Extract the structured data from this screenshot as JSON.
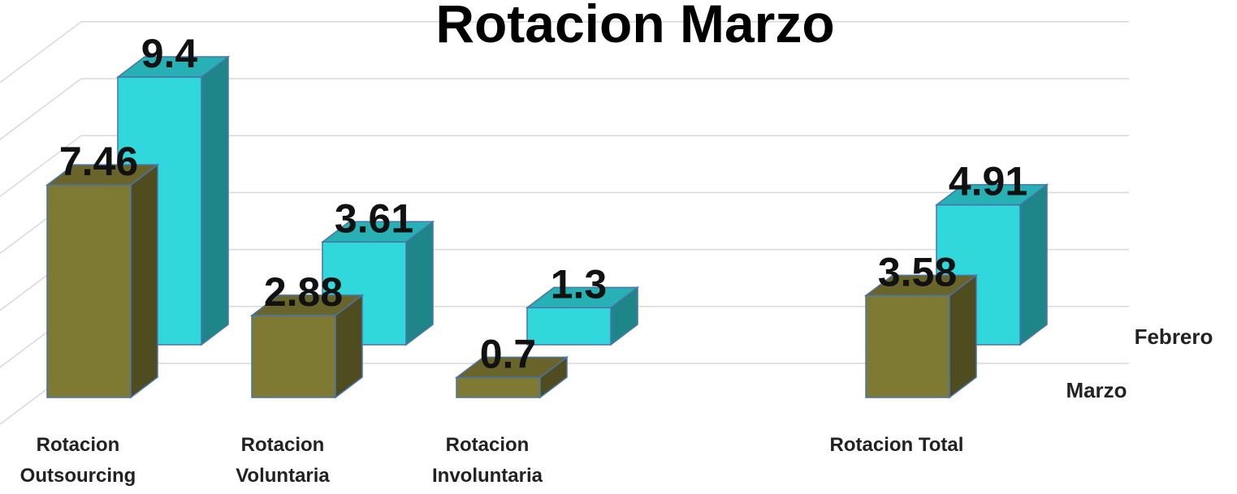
{
  "chart_data": {
    "type": "bar3d",
    "title": "Rotacion Marzo",
    "categories": [
      "Rotacion Outsourcing",
      "Rotacion Voluntaria",
      "Rotacion Involuntaria",
      null,
      "Rotacion Total"
    ],
    "series": [
      {
        "name": "Marzo",
        "color": "#7f7a33",
        "values": [
          7.46,
          2.88,
          0.7,
          null,
          3.58
        ]
      },
      {
        "name": "Febrero",
        "color": "#30d8dc",
        "values": [
          9.4,
          3.61,
          1.3,
          null,
          4.91
        ]
      }
    ],
    "ylim": [
      0,
      12
    ],
    "yticks": [
      0,
      2,
      4,
      6,
      8,
      10,
      12
    ],
    "grid": true
  }
}
